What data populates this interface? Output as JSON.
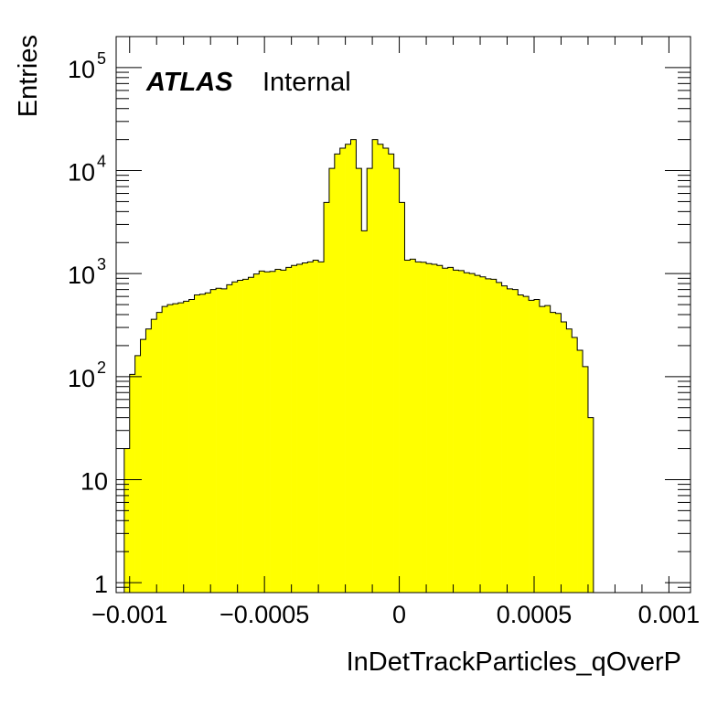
{
  "chart_data": {
    "type": "bar",
    "xlabel": "InDetTrackParticles_qOverP",
    "ylabel": "Entries",
    "label_bold": "ATLAS",
    "label_status": "Internal",
    "xlim": [
      -0.00105,
      0.00108
    ],
    "ylim": [
      0.8,
      200000
    ],
    "log_y": true,
    "fill_color": "#ffff00",
    "line_color": "#000000",
    "grid": false,
    "x_ticks": [
      {
        "value": -0.001,
        "label": "−0.001"
      },
      {
        "value": -0.0005,
        "label": "−0.0005"
      },
      {
        "value": 0,
        "label": "0"
      },
      {
        "value": 0.0005,
        "label": "0.0005"
      },
      {
        "value": 0.001,
        "label": "0.001"
      }
    ],
    "y_ticks": [
      {
        "value": 1,
        "label": "1",
        "sup": ""
      },
      {
        "value": 10,
        "label": "10",
        "sup": ""
      },
      {
        "value": 100,
        "label": "10",
        "sup": "2"
      },
      {
        "value": 1000,
        "label": "10",
        "sup": "3"
      },
      {
        "value": 10000,
        "label": "10",
        "sup": "4"
      },
      {
        "value": 100000,
        "label": "10",
        "sup": "5"
      }
    ],
    "bin_edges_start": -0.00102,
    "bin_width": 2e-05,
    "values": [
      20,
      105,
      160,
      230,
      290,
      360,
      420,
      480,
      500,
      510,
      520,
      540,
      560,
      620,
      630,
      650,
      700,
      720,
      710,
      780,
      830,
      860,
      880,
      920,
      990,
      1060,
      1040,
      1050,
      1100,
      1080,
      1150,
      1200,
      1230,
      1270,
      1300,
      1350,
      1300,
      4900,
      10500,
      14500,
      16500,
      18000,
      20000,
      10500,
      2600,
      10500,
      20000,
      18000,
      16500,
      14500,
      10500,
      4900,
      1350,
      1380,
      1300,
      1290,
      1250,
      1230,
      1200,
      1130,
      1150,
      1080,
      1070,
      1020,
      1000,
      960,
      930,
      890,
      880,
      820,
      760,
      710,
      700,
      620,
      600,
      550,
      560,
      480,
      490,
      420,
      410,
      340,
      290,
      240,
      180,
      125,
      40
    ]
  }
}
